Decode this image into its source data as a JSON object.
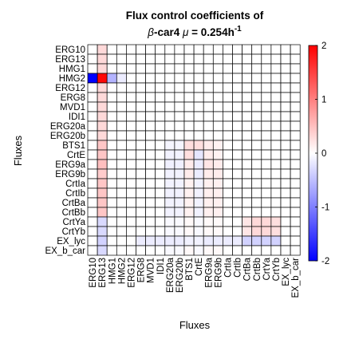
{
  "chart_data": {
    "type": "heatmap",
    "title_line1": "Flux control coefficients of",
    "title_line2_pre": "β",
    "title_line2_mid": "-car4 ",
    "title_line2_mu": "μ",
    "title_line2_post": " = 0.254h",
    "title_line2_sup": "-1",
    "xlabel": "Fluxes",
    "ylabel": "Fluxes",
    "rows": [
      "ERG10",
      "ERG13",
      "HMG1",
      "HMG2",
      "ERG12",
      "ERG8",
      "MVD1",
      "IDI1",
      "ERG20a",
      "ERG20b",
      "BTS1",
      "CrtE",
      "ERG9a",
      "ERG9b",
      "CrtIa",
      "CrtIb",
      "CrtBa",
      "CrtBb",
      "CrtYa",
      "CrtYb",
      "EX_lyc",
      "EX_b_car"
    ],
    "cols": [
      "ERG10",
      "ERG13",
      "HMG1",
      "HMG2",
      "ERG12",
      "ERG8",
      "MVD1",
      "IDI1",
      "ERG20a",
      "ERG20b",
      "BTS1",
      "CrtE",
      "ERG9a",
      "ERG9b",
      "CrtIa",
      "CrtIb",
      "CrtBa",
      "CrtBb",
      "CrtYa",
      "CrtYb",
      "EX_lyc",
      "EX_b_car"
    ],
    "clim": [
      -2,
      2
    ],
    "colorbar_ticks": [
      "2",
      "1",
      "0",
      "-1",
      "-2"
    ],
    "colorbar_tick_values": [
      2,
      1,
      0,
      -1,
      -2
    ],
    "colormap": {
      "low": "#0000ff",
      "mid": "#ffffff",
      "high": "#ff0000"
    },
    "values": [
      [
        0,
        0.3,
        0,
        0,
        0,
        0,
        0,
        0,
        0,
        0,
        0,
        0,
        0,
        0,
        0,
        0,
        0,
        0,
        0,
        0,
        0,
        0
      ],
      [
        0,
        0.3,
        0,
        0,
        0,
        0,
        0,
        0,
        0,
        0,
        0,
        0,
        0,
        0,
        0,
        0,
        0,
        0,
        0,
        0,
        0,
        0
      ],
      [
        0,
        0.3,
        0,
        0,
        0,
        0,
        0,
        0,
        0,
        0,
        0,
        0,
        0,
        0,
        0,
        0,
        0,
        0,
        0,
        0,
        0,
        0
      ],
      [
        -2,
        1.95,
        -0.6,
        -0.15,
        0,
        0,
        0,
        0,
        0,
        0,
        0,
        0,
        0,
        0,
        0,
        0,
        0,
        0,
        0,
        0,
        0,
        0
      ],
      [
        0,
        0.3,
        0,
        0,
        0,
        0,
        0,
        0,
        0,
        0,
        0,
        0,
        0,
        0,
        0,
        0,
        0,
        0,
        0,
        0,
        0,
        0
      ],
      [
        0,
        0.3,
        0,
        0,
        0,
        0,
        0,
        0,
        0,
        0,
        0,
        0,
        0,
        0,
        0,
        0,
        0,
        0,
        0,
        0,
        0,
        0
      ],
      [
        0,
        0.3,
        0,
        0,
        0,
        0,
        0,
        0,
        0,
        0,
        0,
        0,
        0,
        0,
        0,
        0,
        0,
        0,
        0,
        0,
        0,
        0
      ],
      [
        0,
        0.3,
        0,
        0,
        0,
        0,
        0,
        0,
        0,
        0,
        0,
        0,
        0,
        0,
        0,
        0,
        0,
        0,
        0,
        0,
        0,
        0
      ],
      [
        0,
        0.3,
        0,
        0,
        0,
        0,
        0,
        0,
        0,
        0,
        0,
        0,
        0,
        0,
        0,
        0,
        0,
        0,
        0,
        0,
        0,
        0
      ],
      [
        0,
        0.3,
        0,
        0,
        0,
        0,
        0,
        0,
        0,
        0,
        0,
        0,
        0,
        0,
        0,
        0,
        0,
        0,
        0,
        0,
        0,
        0
      ],
      [
        0,
        0.45,
        0,
        0,
        0,
        0,
        0,
        0,
        -0.08,
        -0.08,
        0.25,
        0.25,
        0.15,
        0.1,
        0,
        0,
        0,
        0,
        0,
        0,
        0,
        0
      ],
      [
        0,
        0.45,
        0,
        0,
        0,
        0,
        0,
        0,
        -0.1,
        -0.1,
        0.25,
        -0.2,
        0.15,
        0.1,
        0,
        0,
        0,
        0,
        0,
        0,
        0,
        0
      ],
      [
        0,
        0.5,
        0,
        0,
        0,
        0,
        0,
        0,
        -0.12,
        -0.12,
        0.15,
        -0.15,
        0.2,
        0.15,
        0,
        0,
        0,
        0,
        0,
        0,
        0,
        0
      ],
      [
        0,
        0.4,
        0,
        0,
        0,
        0,
        0,
        0,
        -0.1,
        -0.1,
        0.15,
        -0.15,
        0.15,
        0.15,
        0,
        0,
        0,
        0,
        0,
        0,
        0,
        0
      ],
      [
        0,
        0.45,
        0,
        0,
        0,
        0,
        0,
        0,
        -0.1,
        -0.1,
        0.1,
        -0.1,
        0.12,
        0.12,
        0,
        0,
        0,
        0,
        0,
        0,
        0,
        0
      ],
      [
        0,
        0.45,
        0,
        0,
        0,
        0,
        0,
        0,
        -0.1,
        -0.1,
        0.1,
        -0.1,
        0.12,
        0.12,
        0,
        0,
        0,
        0,
        0,
        0,
        0,
        0
      ],
      [
        0,
        0.45,
        0,
        0,
        0,
        0,
        0,
        0,
        -0.1,
        -0.1,
        0.1,
        -0.1,
        0.12,
        0.12,
        0,
        0,
        0,
        0,
        0,
        0,
        0,
        0
      ],
      [
        0,
        0.45,
        0,
        0,
        0,
        0,
        0,
        0,
        -0.1,
        -0.1,
        0.1,
        -0.1,
        0.12,
        0.12,
        0,
        0,
        0,
        0,
        0,
        0,
        0,
        0
      ],
      [
        0,
        -0.3,
        0,
        0,
        0,
        0,
        0,
        0,
        -0.05,
        -0.05,
        0.05,
        -0.05,
        0.05,
        0.05,
        0,
        0,
        0.2,
        0.3,
        0.3,
        0.25,
        0,
        0
      ],
      [
        0,
        -0.3,
        0,
        0,
        0,
        0,
        0,
        0,
        -0.05,
        -0.05,
        0.05,
        -0.05,
        0.05,
        0.05,
        0,
        0,
        0.2,
        0.3,
        0.3,
        0.25,
        0,
        0
      ],
      [
        0,
        -0.35,
        0,
        0,
        0,
        -0.15,
        -0.15,
        -0.15,
        -0.15,
        -0.15,
        -0.1,
        -0.1,
        -0.15,
        -0.15,
        -0.15,
        -0.15,
        -0.35,
        -0.35,
        -0.35,
        -0.35,
        0,
        0
      ],
      [
        0,
        -0.3,
        0,
        0,
        0,
        0,
        0,
        0,
        -0.05,
        -0.05,
        0.05,
        -0.05,
        0.05,
        0.05,
        0,
        0,
        0,
        0,
        0,
        0,
        0,
        0
      ]
    ]
  }
}
